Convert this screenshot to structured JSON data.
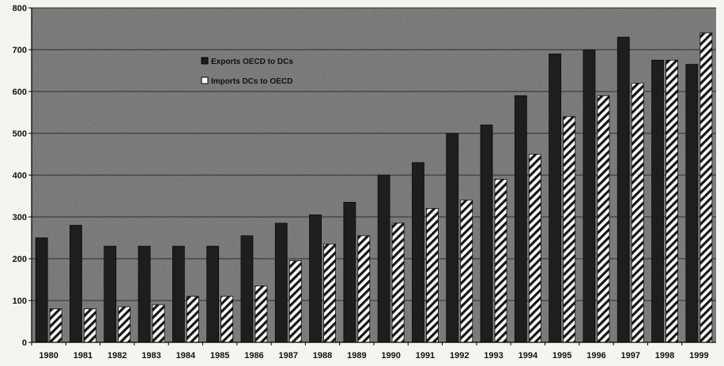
{
  "chart_data": {
    "type": "bar",
    "title": "",
    "xlabel": "",
    "ylabel": "",
    "ylim": [
      0,
      800
    ],
    "yticks": [
      0,
      100,
      200,
      300,
      400,
      500,
      600,
      700,
      800
    ],
    "grid": true,
    "legend_position": "top-left",
    "categories": [
      "1980",
      "1981",
      "1982",
      "1983",
      "1984",
      "1985",
      "1986",
      "1987",
      "1988",
      "1989",
      "1990",
      "1991",
      "1992",
      "1993",
      "1994",
      "1995",
      "1996",
      "1997",
      "1998",
      "1999"
    ],
    "series": [
      {
        "name": "Exports OECD to DCs",
        "color": "#1e1e1e",
        "pattern": "solid",
        "values": [
          250,
          280,
          230,
          230,
          230,
          230,
          255,
          285,
          305,
          335,
          400,
          430,
          500,
          520,
          590,
          690,
          700,
          730,
          675,
          665
        ]
      },
      {
        "name": "Imports DCs to OECD",
        "color": "#ffffff",
        "pattern": "diagonal-hatch",
        "values": [
          80,
          80,
          85,
          90,
          110,
          110,
          135,
          195,
          235,
          255,
          285,
          320,
          340,
          390,
          450,
          540,
          590,
          620,
          675,
          740
        ]
      }
    ]
  },
  "colors": {
    "plot_background": "#6d6d6d",
    "gridline": "#2c2c2c"
  }
}
